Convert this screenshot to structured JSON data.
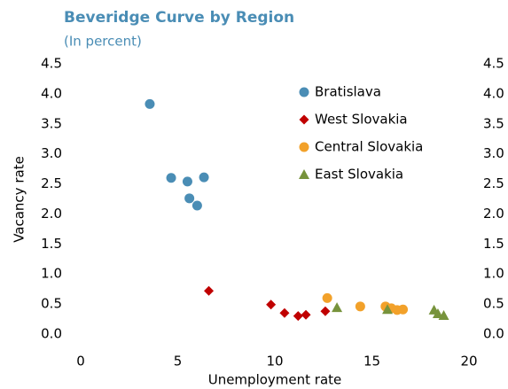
{
  "chart_data": {
    "type": "scatter",
    "title": "Beveridge Curve by Region",
    "subtitle": "(In percent)",
    "x_label": "Unemployment rate",
    "y_label": "Vacancy rate",
    "xlim": [
      0,
      20
    ],
    "xticks": [
      0,
      5,
      10,
      15,
      20
    ],
    "ylim": [
      0,
      4.5
    ],
    "yticks": [
      {
        "value": 0,
        "label": "0.0"
      },
      {
        "value": 0.5,
        "label": "0.5"
      },
      {
        "value": 1,
        "label": "1.0"
      },
      {
        "value": 1.5,
        "label": "1.5"
      },
      {
        "value": 2,
        "label": "2.0"
      },
      {
        "value": 2.5,
        "label": "2.5"
      },
      {
        "value": 3,
        "label": "3.0"
      },
      {
        "value": 3.5,
        "label": "3.5"
      },
      {
        "value": 4,
        "label": "4.0"
      },
      {
        "value": 4.5,
        "label": "4.5"
      }
    ],
    "y2lim": [
      0,
      4.5
    ],
    "y2ticks": [
      {
        "value": 0,
        "label": "0.0"
      },
      {
        "value": 0.5,
        "label": "0.5"
      },
      {
        "value": 1,
        "label": "1.0"
      },
      {
        "value": 1.5,
        "label": "1.5"
      },
      {
        "value": 2,
        "label": "2.0"
      },
      {
        "value": 2.5,
        "label": "2.5"
      },
      {
        "value": 3,
        "label": "3.0"
      },
      {
        "value": 3.5,
        "label": "3.5"
      },
      {
        "value": 4,
        "label": "4.0"
      },
      {
        "value": 4.5,
        "label": "4.5"
      }
    ],
    "legend": "upper right",
    "series": [
      {
        "name": "Bratislava",
        "color": "#4a8db5",
        "marker": "circle",
        "x": [
          3.56,
          4.66,
          5.5,
          5.6,
          6.0,
          6.35
        ],
        "values": [
          3.83,
          2.6,
          2.54,
          2.26,
          2.14,
          2.61
        ]
      },
      {
        "name": "West Slovakia",
        "color": "#c00000",
        "marker": "diamond",
        "x": [
          6.6,
          9.8,
          10.5,
          11.2,
          11.6,
          12.6
        ],
        "values": [
          0.72,
          0.49,
          0.35,
          0.3,
          0.32,
          0.38
        ]
      },
      {
        "name": "Central Slovakia",
        "color": "#f2a12a",
        "marker": "circle",
        "x": [
          12.7,
          14.4,
          15.7,
          16.0,
          16.3,
          16.6
        ],
        "values": [
          0.6,
          0.46,
          0.46,
          0.43,
          0.4,
          0.41
        ]
      },
      {
        "name": "East Slovakia",
        "color": "#77933c",
        "marker": "triangle",
        "x": [
          13.2,
          15.8,
          18.2,
          18.4,
          18.7
        ],
        "values": [
          0.44,
          0.41,
          0.4,
          0.34,
          0.31
        ]
      }
    ]
  }
}
